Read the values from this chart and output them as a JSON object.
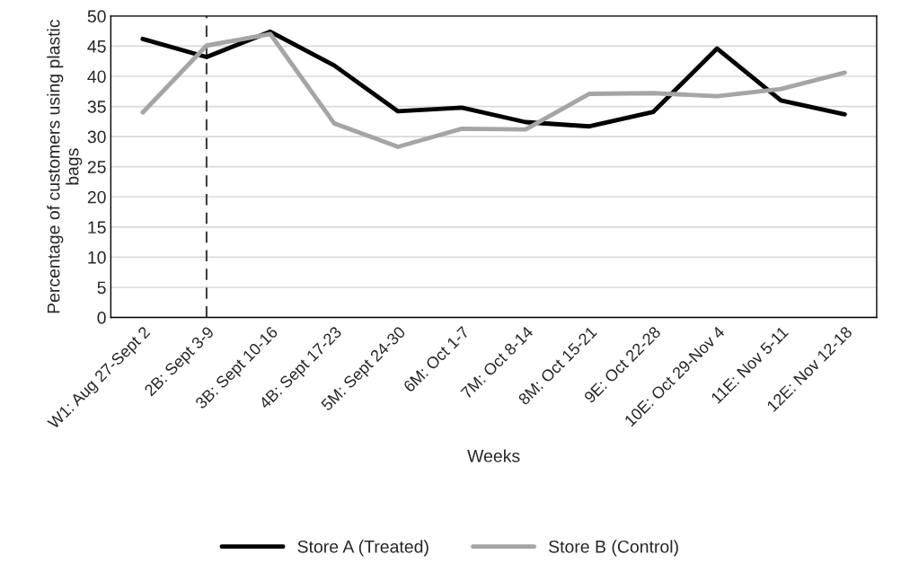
{
  "chart_data": {
    "type": "line",
    "xlabel": "Weeks",
    "ylabel": "Percentage of customers using plastic bags",
    "categories": [
      "W1: Aug 27-Sept 2",
      "2B: Sept 3-9",
      "3B: Sept 10-16",
      "4B: Sept 17-23",
      "5M: Sept 24-30",
      "6M: Oct 1-7",
      "7M: Oct 8-14",
      "8M: Oct 15-21",
      "9E: Oct 22-28",
      "10E: Oct 29-Nov 4",
      "11E: Nov 5-11",
      "12E: Nov 12-18"
    ],
    "series": [
      {
        "name": "Store A (Treated)",
        "color": "#000000",
        "values": [
          46.2,
          43.2,
          47.4,
          41.8,
          34.2,
          34.8,
          32.4,
          31.7,
          34.1,
          44.6,
          36.0,
          33.7
        ]
      },
      {
        "name": "Store B (Control)",
        "color": "#a5a5a5",
        "values": [
          34.0,
          45.1,
          47.0,
          32.2,
          28.3,
          31.3,
          31.2,
          37.1,
          37.2,
          36.7,
          37.9,
          40.6
        ]
      }
    ],
    "ylim": [
      0,
      50
    ],
    "yticks": [
      0,
      5,
      10,
      15,
      20,
      25,
      30,
      35,
      40,
      45,
      50
    ],
    "ref_lines": [
      {
        "axis": "x",
        "value": "2B: Sept 3-9",
        "color": "#404040",
        "line_style": "dashed"
      }
    ],
    "grid": "y",
    "legend": "bottom",
    "marker": "none",
    "line_style": "solid"
  }
}
